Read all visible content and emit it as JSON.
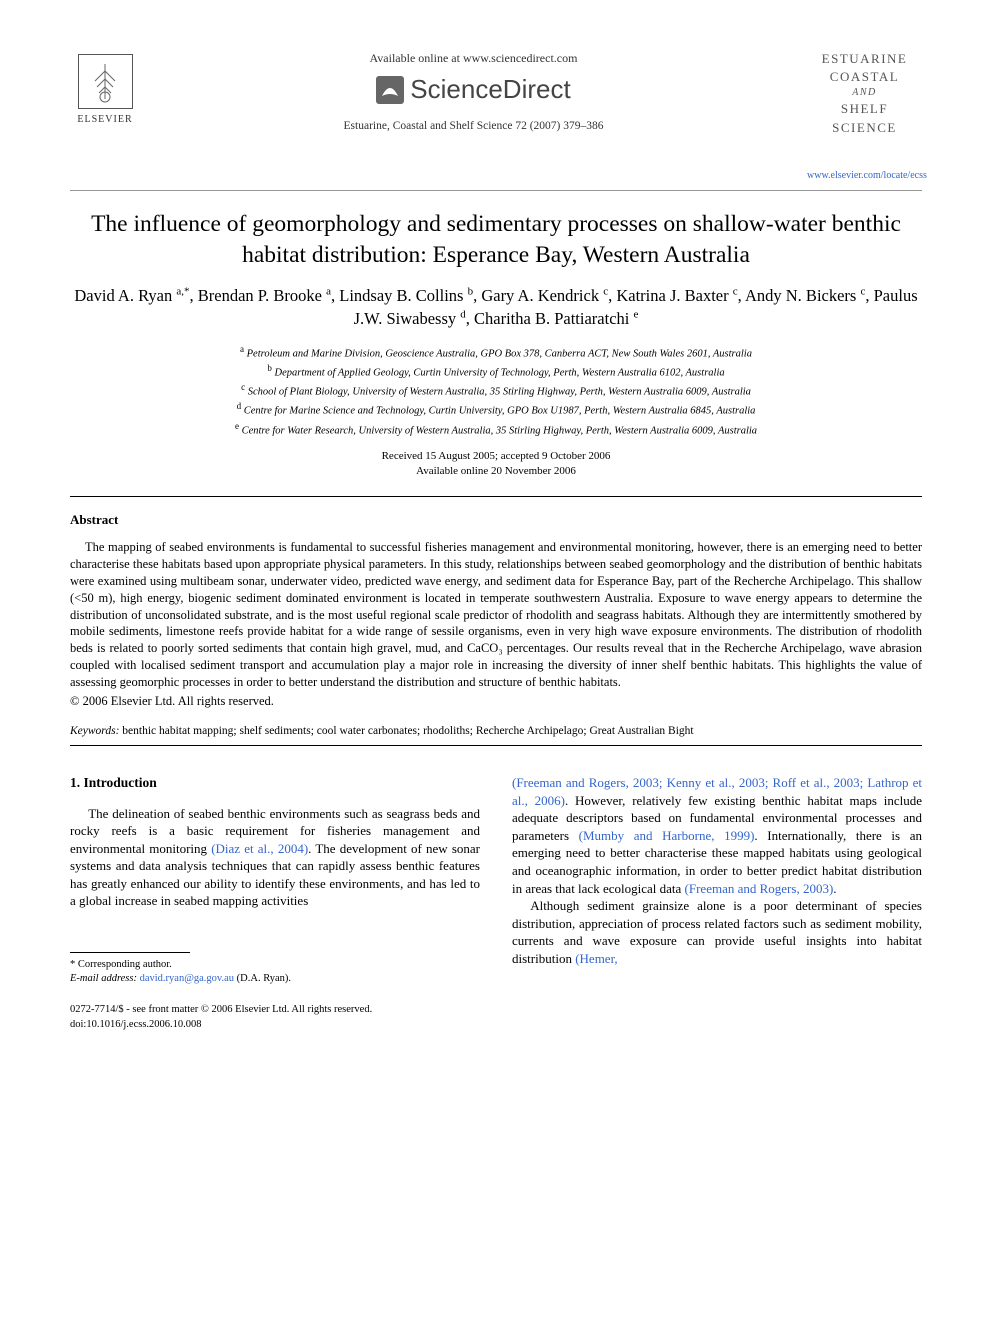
{
  "header": {
    "available_online": "Available online at www.sciencedirect.com",
    "sciencedirect": "ScienceDirect",
    "journal_ref": "Estuarine, Coastal and Shelf Science 72 (2007) 379–386",
    "elsevier_label": "ELSEVIER",
    "cover_line1": "ESTUARINE",
    "cover_line2": "COASTAL",
    "cover_and": "AND",
    "cover_line3": "SHELF SCIENCE",
    "journal_url": "www.elsevier.com/locate/ecss"
  },
  "article": {
    "title": "The influence of geomorphology and sedimentary processes on shallow-water benthic habitat distribution: Esperance Bay, Western Australia",
    "authors_html": "David A. Ryan <sup>a,*</sup>, Brendan P. Brooke <sup>a</sup>, Lindsay B. Collins <sup>b</sup>, Gary A. Kendrick <sup>c</sup>, Katrina J. Baxter <sup>c</sup>, Andy N. Bickers <sup>c</sup>, Paulus J.W. Siwabessy <sup>d</sup>, Charitha B. Pattiaratchi <sup>e</sup>",
    "affiliations": [
      "<sup>a</sup> Petroleum and Marine Division, Geoscience Australia, GPO Box 378, Canberra ACT, New South Wales 2601, Australia",
      "<sup>b</sup> Department of Applied Geology, Curtin University of Technology, Perth, Western Australia 6102, Australia",
      "<sup>c</sup> School of Plant Biology, University of Western Australia, 35 Stirling Highway, Perth, Western Australia 6009, Australia",
      "<sup>d</sup> Centre for Marine Science and Technology, Curtin University, GPO Box U1987, Perth, Western Australia 6845, Australia",
      "<sup>e</sup> Centre for Water Research, University of Western Australia, 35 Stirling Highway, Perth, Western Australia 6009, Australia"
    ],
    "received": "Received 15 August 2005; accepted 9 October 2006",
    "online": "Available online 20 November 2006"
  },
  "abstract": {
    "heading": "Abstract",
    "body": "The mapping of seabed environments is fundamental to successful fisheries management and environmental monitoring, however, there is an emerging need to better characterise these habitats based upon appropriate physical parameters. In this study, relationships between seabed geomorphology and the distribution of benthic habitats were examined using multibeam sonar, underwater video, predicted wave energy, and sediment data for Esperance Bay, part of the Recherche Archipelago. This shallow (<50 m), high energy, biogenic sediment dominated environment is located in temperate southwestern Australia. Exposure to wave energy appears to determine the distribution of unconsolidated substrate, and is the most useful regional scale predictor of rhodolith and seagrass habitats. Although they are intermittently smothered by mobile sediments, limestone reefs provide habitat for a wide range of sessile organisms, even in very high wave exposure environments. The distribution of rhodolith beds is related to poorly sorted sediments that contain high gravel, mud, and CaCO₃ percentages. Our results reveal that in the Recherche Archipelago, wave abrasion coupled with localised sediment transport and accumulation play a major role in increasing the diversity of inner shelf benthic habitats. This highlights the value of assessing geomorphic processes in order to better understand the distribution and structure of benthic habitats.",
    "copyright": "© 2006 Elsevier Ltd. All rights reserved."
  },
  "keywords": {
    "label": "Keywords:",
    "text": "benthic habitat mapping; shelf sediments; cool water carbonates; rhodoliths; Recherche Archipelago; Great Australian Bight"
  },
  "intro": {
    "heading": "1. Introduction",
    "left_para1_prefix": "The delineation of seabed benthic environments such as seagrass beds and rocky reefs is a basic requirement for fisheries management and environmental monitoring ",
    "left_cite1": "(Diaz et al., 2004)",
    "left_para1_suffix": ". The development of new sonar systems and data analysis techniques that can rapidly assess benthic features has greatly enhanced our ability to identify these environments, and has led to a global increase in seabed mapping activities",
    "right_cite1": "(Freeman and Rogers, 2003; Kenny et al., 2003; Roff et al., 2003; Lathrop et al., 2006)",
    "right_para1_mid": ". However, relatively few existing benthic habitat maps include adequate descriptors based on fundamental environmental processes and parameters ",
    "right_cite2": "(Mumby and Harborne, 1999)",
    "right_para1_mid2": ". Internationally, there is an emerging need to better characterise these mapped habitats using geological and oceanographic information, in order to better predict habitat distribution in areas that lack ecological data ",
    "right_cite3": "(Freeman and Rogers, 2003)",
    "right_para2": "Although sediment grainsize alone is a poor determinant of species distribution, appreciation of process related factors such as sediment mobility, currents and wave exposure can provide useful insights into habitat distribution ",
    "right_cite4": "(Hemer,"
  },
  "footnote": {
    "corresponding": "* Corresponding author.",
    "email_label": "E-mail address:",
    "email": "david.ryan@ga.gov.au",
    "email_name": "(D.A. Ryan)."
  },
  "bottom": {
    "issn_line": "0272-7714/$ - see front matter © 2006 Elsevier Ltd. All rights reserved.",
    "doi": "doi:10.1016/j.ecss.2006.10.008"
  },
  "colors": {
    "link": "#3366cc",
    "text": "#000000",
    "background": "#ffffff"
  },
  "typography": {
    "body_font": "Times New Roman",
    "title_size_pt": 18,
    "author_size_pt": 12.5,
    "abstract_size_pt": 9.5,
    "body_size_pt": 10
  }
}
